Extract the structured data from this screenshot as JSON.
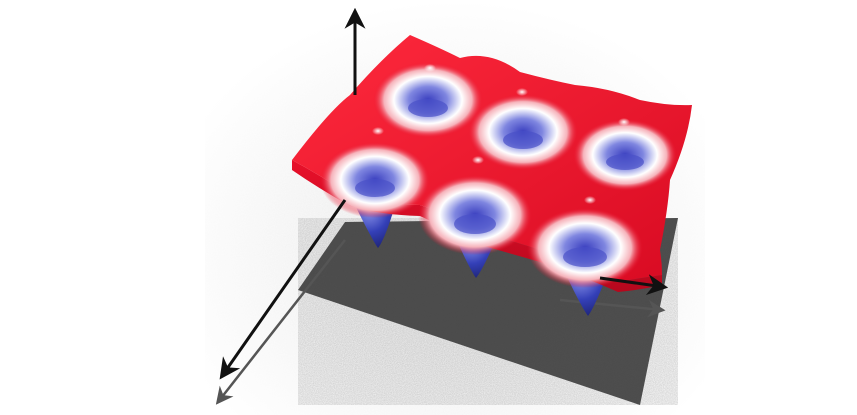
{
  "scene": {
    "subject": "3d-potential-energy-surface",
    "wells": {
      "rows": 2,
      "columns": 3
    },
    "colors": {
      "peak": "#e8102a",
      "mid": "#ffffff",
      "well": "#3b46c8",
      "shadow": "#2a2a2a",
      "axis": "#111111"
    }
  }
}
